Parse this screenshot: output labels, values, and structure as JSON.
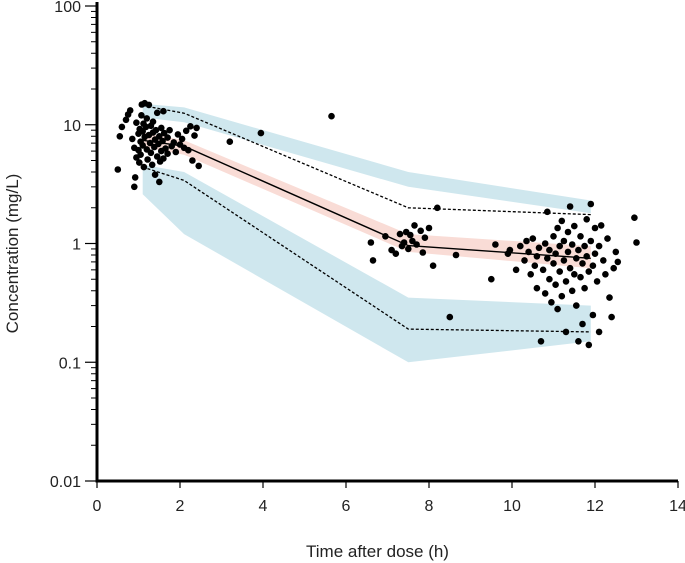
{
  "chart_data": {
    "type": "scatter",
    "title": "",
    "xlabel": "Time after dose (h)",
    "ylabel": "Concentration (mg/L)",
    "x_scale": "linear",
    "y_scale": "log",
    "xlim": [
      0,
      14
    ],
    "ylim": [
      0.01,
      100
    ],
    "x_ticks": [
      0,
      2,
      4,
      6,
      8,
      10,
      12,
      14
    ],
    "y_ticks": [
      0.01,
      0.1,
      1,
      10,
      100
    ],
    "y_tick_labels": [
      "0.01",
      "0.1",
      "1",
      "10",
      "100"
    ],
    "grid": false,
    "colors": {
      "points": "#000000",
      "pi_band": "#cfe7ee",
      "median_band": "#f9dcd6",
      "median_line": "#000000",
      "percentile_lines": "#000000"
    },
    "bands": [
      {
        "kind": "outer-upper",
        "x": [
          1.1,
          2.1,
          7.5,
          11.9
        ],
        "lower": [
          11.5,
          10.5,
          3.0,
          1.8
        ],
        "upper": [
          15.0,
          14.0,
          4.0,
          2.3
        ]
      },
      {
        "kind": "outer-lower",
        "x": [
          1.1,
          2.1,
          7.5,
          11.9
        ],
        "lower": [
          2.6,
          1.2,
          0.1,
          0.15
        ],
        "upper": [
          4.6,
          4.0,
          0.35,
          0.3
        ]
      },
      {
        "kind": "median",
        "x": [
          1.1,
          2.1,
          7.5,
          11.9
        ],
        "lower": [
          6.5,
          5.6,
          0.85,
          0.62
        ],
        "upper": [
          8.6,
          7.4,
          1.2,
          0.95
        ]
      }
    ],
    "lines": [
      {
        "kind": "upper-percentile",
        "style": "dashed",
        "x": [
          1.1,
          2.1,
          7.5,
          11.9
        ],
        "y": [
          14.5,
          12.5,
          2.0,
          1.75
        ]
      },
      {
        "kind": "median",
        "style": "solid",
        "x": [
          1.1,
          2.1,
          7.5,
          11.9
        ],
        "y": [
          7.4,
          6.6,
          0.96,
          0.75
        ]
      },
      {
        "kind": "lower-percentile",
        "style": "dashed",
        "x": [
          1.1,
          2.1,
          7.5,
          11.9
        ],
        "y": [
          4.4,
          3.4,
          0.19,
          0.18
        ]
      }
    ],
    "points": [
      {
        "x": 0.5,
        "y": 4.2
      },
      {
        "x": 0.55,
        "y": 8.0
      },
      {
        "x": 0.6,
        "y": 9.6
      },
      {
        "x": 0.7,
        "y": 11.0
      },
      {
        "x": 0.75,
        "y": 12.2
      },
      {
        "x": 0.8,
        "y": 13.2
      },
      {
        "x": 0.85,
        "y": 7.6
      },
      {
        "x": 0.9,
        "y": 6.4
      },
      {
        "x": 0.9,
        "y": 3.0
      },
      {
        "x": 0.92,
        "y": 3.6
      },
      {
        "x": 0.95,
        "y": 10.4
      },
      {
        "x": 0.95,
        "y": 5.3
      },
      {
        "x": 1.0,
        "y": 8.4
      },
      {
        "x": 1.0,
        "y": 6.1
      },
      {
        "x": 1.02,
        "y": 4.8
      },
      {
        "x": 1.03,
        "y": 9.2
      },
      {
        "x": 1.05,
        "y": 7.2
      },
      {
        "x": 1.05,
        "y": 5.6
      },
      {
        "x": 1.07,
        "y": 12.0
      },
      {
        "x": 1.08,
        "y": 14.8
      },
      {
        "x": 1.1,
        "y": 8.8
      },
      {
        "x": 1.1,
        "y": 6.7
      },
      {
        "x": 1.12,
        "y": 10.2
      },
      {
        "x": 1.13,
        "y": 4.4
      },
      {
        "x": 1.15,
        "y": 7.9
      },
      {
        "x": 1.15,
        "y": 15.2
      },
      {
        "x": 1.18,
        "y": 9.6
      },
      {
        "x": 1.2,
        "y": 6.2
      },
      {
        "x": 1.2,
        "y": 11.3
      },
      {
        "x": 1.22,
        "y": 5.1
      },
      {
        "x": 1.25,
        "y": 8.2
      },
      {
        "x": 1.25,
        "y": 14.7
      },
      {
        "x": 1.28,
        "y": 7.0
      },
      {
        "x": 1.3,
        "y": 9.8
      },
      {
        "x": 1.3,
        "y": 5.8
      },
      {
        "x": 1.33,
        "y": 4.6
      },
      {
        "x": 1.35,
        "y": 8.6
      },
      {
        "x": 1.35,
        "y": 10.6
      },
      {
        "x": 1.38,
        "y": 6.5
      },
      {
        "x": 1.4,
        "y": 7.5
      },
      {
        "x": 1.4,
        "y": 3.8
      },
      {
        "x": 1.42,
        "y": 9.0
      },
      {
        "x": 1.45,
        "y": 5.4
      },
      {
        "x": 1.45,
        "y": 12.6
      },
      {
        "x": 1.48,
        "y": 6.9
      },
      {
        "x": 1.5,
        "y": 8.0
      },
      {
        "x": 1.5,
        "y": 3.3
      },
      {
        "x": 1.52,
        "y": 4.9
      },
      {
        "x": 1.55,
        "y": 9.4
      },
      {
        "x": 1.55,
        "y": 6.0
      },
      {
        "x": 1.58,
        "y": 7.3
      },
      {
        "x": 1.6,
        "y": 5.2
      },
      {
        "x": 1.6,
        "y": 13.0
      },
      {
        "x": 1.62,
        "y": 8.5
      },
      {
        "x": 1.65,
        "y": 6.3
      },
      {
        "x": 1.7,
        "y": 7.8
      },
      {
        "x": 1.7,
        "y": 5.7
      },
      {
        "x": 1.75,
        "y": 9.0
      },
      {
        "x": 1.8,
        "y": 6.6
      },
      {
        "x": 1.85,
        "y": 7.1
      },
      {
        "x": 1.9,
        "y": 5.9
      },
      {
        "x": 1.95,
        "y": 8.3
      },
      {
        "x": 2.0,
        "y": 6.8
      },
      {
        "x": 2.05,
        "y": 7.6
      },
      {
        "x": 2.1,
        "y": 6.4
      },
      {
        "x": 2.15,
        "y": 8.9
      },
      {
        "x": 2.2,
        "y": 6.1
      },
      {
        "x": 2.25,
        "y": 9.7
      },
      {
        "x": 2.3,
        "y": 5.0
      },
      {
        "x": 2.35,
        "y": 8.1
      },
      {
        "x": 2.4,
        "y": 9.4
      },
      {
        "x": 2.45,
        "y": 4.5
      },
      {
        "x": 3.2,
        "y": 7.2
      },
      {
        "x": 3.95,
        "y": 8.5
      },
      {
        "x": 5.65,
        "y": 11.8
      },
      {
        "x": 6.6,
        "y": 1.02
      },
      {
        "x": 6.65,
        "y": 0.72
      },
      {
        "x": 6.95,
        "y": 1.15
      },
      {
        "x": 7.1,
        "y": 0.88
      },
      {
        "x": 7.2,
        "y": 0.82
      },
      {
        "x": 7.3,
        "y": 1.2
      },
      {
        "x": 7.35,
        "y": 0.95
      },
      {
        "x": 7.4,
        "y": 1.02
      },
      {
        "x": 7.45,
        "y": 1.25
      },
      {
        "x": 7.5,
        "y": 0.9
      },
      {
        "x": 7.55,
        "y": 1.18
      },
      {
        "x": 7.6,
        "y": 1.05
      },
      {
        "x": 7.65,
        "y": 1.42
      },
      {
        "x": 7.7,
        "y": 0.98
      },
      {
        "x": 7.8,
        "y": 1.28
      },
      {
        "x": 7.85,
        "y": 0.84
      },
      {
        "x": 7.9,
        "y": 1.12
      },
      {
        "x": 8.0,
        "y": 1.35
      },
      {
        "x": 8.1,
        "y": 0.65
      },
      {
        "x": 8.2,
        "y": 2.0
      },
      {
        "x": 8.5,
        "y": 0.24
      },
      {
        "x": 8.65,
        "y": 0.8
      },
      {
        "x": 9.5,
        "y": 0.5
      },
      {
        "x": 9.6,
        "y": 0.98
      },
      {
        "x": 9.9,
        "y": 0.82
      },
      {
        "x": 9.95,
        "y": 0.88
      },
      {
        "x": 10.1,
        "y": 0.6
      },
      {
        "x": 10.2,
        "y": 0.95
      },
      {
        "x": 10.3,
        "y": 0.72
      },
      {
        "x": 10.35,
        "y": 1.05
      },
      {
        "x": 10.4,
        "y": 0.85
      },
      {
        "x": 10.45,
        "y": 0.55
      },
      {
        "x": 10.5,
        "y": 1.1
      },
      {
        "x": 10.55,
        "y": 0.65
      },
      {
        "x": 10.6,
        "y": 0.42
      },
      {
        "x": 10.6,
        "y": 0.78
      },
      {
        "x": 10.65,
        "y": 0.92
      },
      {
        "x": 10.7,
        "y": 0.15
      },
      {
        "x": 10.75,
        "y": 0.6
      },
      {
        "x": 10.8,
        "y": 0.38
      },
      {
        "x": 10.8,
        "y": 1.0
      },
      {
        "x": 10.85,
        "y": 0.75
      },
      {
        "x": 10.85,
        "y": 1.85
      },
      {
        "x": 10.9,
        "y": 0.5
      },
      {
        "x": 10.9,
        "y": 0.88
      },
      {
        "x": 10.95,
        "y": 0.32
      },
      {
        "x": 11.0,
        "y": 0.68
      },
      {
        "x": 11.0,
        "y": 1.15
      },
      {
        "x": 11.05,
        "y": 0.45
      },
      {
        "x": 11.05,
        "y": 0.82
      },
      {
        "x": 11.1,
        "y": 0.28
      },
      {
        "x": 11.1,
        "y": 1.35
      },
      {
        "x": 11.15,
        "y": 0.58
      },
      {
        "x": 11.15,
        "y": 0.95
      },
      {
        "x": 11.2,
        "y": 0.36
      },
      {
        "x": 11.2,
        "y": 1.55
      },
      {
        "x": 11.25,
        "y": 0.72
      },
      {
        "x": 11.25,
        "y": 1.05
      },
      {
        "x": 11.3,
        "y": 0.48
      },
      {
        "x": 11.3,
        "y": 0.18
      },
      {
        "x": 11.35,
        "y": 0.85
      },
      {
        "x": 11.35,
        "y": 1.25
      },
      {
        "x": 11.4,
        "y": 0.62
      },
      {
        "x": 11.4,
        "y": 2.05
      },
      {
        "x": 11.45,
        "y": 0.4
      },
      {
        "x": 11.45,
        "y": 0.98
      },
      {
        "x": 11.5,
        "y": 0.55
      },
      {
        "x": 11.5,
        "y": 1.4
      },
      {
        "x": 11.55,
        "y": 0.3
      },
      {
        "x": 11.55,
        "y": 0.75
      },
      {
        "x": 11.6,
        "y": 0.88
      },
      {
        "x": 11.6,
        "y": 0.15
      },
      {
        "x": 11.65,
        "y": 0.52
      },
      {
        "x": 11.65,
        "y": 1.15
      },
      {
        "x": 11.7,
        "y": 0.68
      },
      {
        "x": 11.7,
        "y": 0.21
      },
      {
        "x": 11.75,
        "y": 0.95
      },
      {
        "x": 11.75,
        "y": 0.42
      },
      {
        "x": 11.8,
        "y": 1.6
      },
      {
        "x": 11.8,
        "y": 0.78
      },
      {
        "x": 11.85,
        "y": 0.58
      },
      {
        "x": 11.85,
        "y": 0.14
      },
      {
        "x": 11.9,
        "y": 1.05
      },
      {
        "x": 11.9,
        "y": 2.15
      },
      {
        "x": 11.95,
        "y": 0.65
      },
      {
        "x": 11.95,
        "y": 0.25
      },
      {
        "x": 12.0,
        "y": 0.82
      },
      {
        "x": 12.0,
        "y": 1.35
      },
      {
        "x": 12.05,
        "y": 0.48
      },
      {
        "x": 12.1,
        "y": 0.95
      },
      {
        "x": 12.1,
        "y": 0.18
      },
      {
        "x": 12.15,
        "y": 1.42
      },
      {
        "x": 12.2,
        "y": 0.72
      },
      {
        "x": 12.25,
        "y": 0.55
      },
      {
        "x": 12.3,
        "y": 1.1
      },
      {
        "x": 12.35,
        "y": 0.35
      },
      {
        "x": 12.4,
        "y": 0.24
      },
      {
        "x": 12.45,
        "y": 0.62
      },
      {
        "x": 12.5,
        "y": 0.85
      },
      {
        "x": 12.55,
        "y": 0.7
      },
      {
        "x": 12.95,
        "y": 1.65
      },
      {
        "x": 13.0,
        "y": 1.02
      }
    ]
  }
}
